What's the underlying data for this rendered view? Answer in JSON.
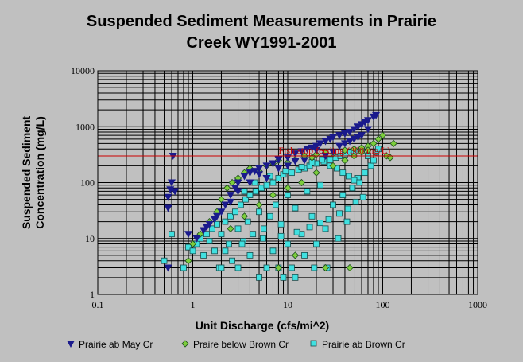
{
  "chart_data": {
    "type": "scatter",
    "title_line1": "Suspended Sediment Measurements in Prairie",
    "title_line2": "Creek WY1991-2001",
    "xlabel": "Unit Discharge (cfs/mi^2)",
    "ylabel_line1": "Suspended Sediment",
    "ylabel_line2": "Concentration (mg/L)",
    "xscale": "log",
    "yscale": "log",
    "xlim": [
      0.1,
      1000
    ],
    "ylim": [
      1,
      10000
    ],
    "x_ticks": [
      "0.1",
      "1",
      "10",
      "100",
      "1000"
    ],
    "y_ticks": [
      "1",
      "10",
      "100",
      "1000",
      "10000"
    ],
    "grid": true,
    "legend_position": "bottom",
    "reference_line": {
      "y": 300,
      "label": "Fish stop feeding (300 mg/L)",
      "color": "#cc0000"
    },
    "series": [
      {
        "name": "Prairie ab May Cr",
        "marker": "triangle-down",
        "color": "#1a1a8c",
        "points": [
          [
            0.55,
            35
          ],
          [
            0.55,
            55
          ],
          [
            0.58,
            75
          ],
          [
            0.6,
            100
          ],
          [
            0.62,
            300
          ],
          [
            0.65,
            70
          ],
          [
            0.55,
            3
          ],
          [
            0.9,
            12
          ],
          [
            1.1,
            10
          ],
          [
            1.3,
            14
          ],
          [
            1.5,
            18
          ],
          [
            1.7,
            22
          ],
          [
            2.0,
            30
          ],
          [
            2.2,
            40
          ],
          [
            2.5,
            60
          ],
          [
            2.8,
            80
          ],
          [
            3.0,
            100
          ],
          [
            3.5,
            130
          ],
          [
            4.0,
            150
          ],
          [
            4.5,
            160
          ],
          [
            5.0,
            180
          ],
          [
            6.0,
            200
          ],
          [
            7.0,
            220
          ],
          [
            8.0,
            260
          ],
          [
            10,
            280
          ],
          [
            12,
            330
          ],
          [
            14,
            360
          ],
          [
            16,
            400
          ],
          [
            18,
            420
          ],
          [
            20,
            450
          ],
          [
            22,
            500
          ],
          [
            25,
            550
          ],
          [
            28,
            600
          ],
          [
            30,
            650
          ],
          [
            35,
            700
          ],
          [
            40,
            750
          ],
          [
            45,
            800
          ],
          [
            50,
            900
          ],
          [
            55,
            1000
          ],
          [
            60,
            1100
          ],
          [
            65,
            1200
          ],
          [
            70,
            1300
          ],
          [
            80,
            1500
          ],
          [
            85,
            1600
          ],
          [
            15,
            250
          ],
          [
            25,
            300
          ],
          [
            30,
            350
          ],
          [
            40,
            500
          ],
          [
            50,
            600
          ],
          [
            60,
            700
          ],
          [
            35,
            450
          ],
          [
            45,
            550
          ],
          [
            55,
            650
          ],
          [
            70,
            900
          ],
          [
            20,
            380
          ],
          [
            10,
            200
          ],
          [
            12,
            240
          ],
          [
            8,
            180
          ],
          [
            6,
            120
          ],
          [
            5,
            140
          ],
          [
            4,
            100
          ],
          [
            3,
            70
          ],
          [
            2.5,
            45
          ],
          [
            1.8,
            25
          ],
          [
            1.4,
            16
          ]
        ]
      },
      {
        "name": "Praire below Brown Cr",
        "marker": "diamond",
        "color": "#7ccd3c",
        "points": [
          [
            0.9,
            4
          ],
          [
            1.0,
            8
          ],
          [
            1.2,
            12
          ],
          [
            1.5,
            20
          ],
          [
            1.8,
            30
          ],
          [
            2.0,
            50
          ],
          [
            2.3,
            80
          ],
          [
            2.6,
            100
          ],
          [
            3.0,
            120
          ],
          [
            3.5,
            150
          ],
          [
            4.0,
            180
          ],
          [
            5.0,
            160
          ],
          [
            6.0,
            200
          ],
          [
            7.0,
            220
          ],
          [
            8.0,
            250
          ],
          [
            10,
            230
          ],
          [
            12,
            260
          ],
          [
            15,
            300
          ],
          [
            18,
            280
          ],
          [
            20,
            320
          ],
          [
            25,
            350
          ],
          [
            30,
            330
          ],
          [
            40,
            380
          ],
          [
            50,
            400
          ],
          [
            60,
            420
          ],
          [
            70,
            450
          ],
          [
            80,
            500
          ],
          [
            90,
            600
          ],
          [
            100,
            700
          ],
          [
            110,
            300
          ],
          [
            120,
            280
          ],
          [
            130,
            500
          ],
          [
            2.5,
            15
          ],
          [
            3.5,
            25
          ],
          [
            5,
            40
          ],
          [
            7,
            60
          ],
          [
            10,
            80
          ],
          [
            14,
            100
          ],
          [
            20,
            150
          ],
          [
            30,
            200
          ],
          [
            40,
            250
          ],
          [
            50,
            300
          ],
          [
            60,
            350
          ],
          [
            70,
            380
          ],
          [
            25,
            3
          ],
          [
            45,
            3
          ],
          [
            8,
            3
          ],
          [
            12,
            5
          ]
        ]
      },
      {
        "name": "Prairie ab Brown Cr",
        "marker": "square",
        "color": "#40e0e0",
        "points": [
          [
            0.5,
            4
          ],
          [
            0.6,
            12
          ],
          [
            0.8,
            3
          ],
          [
            0.9,
            7
          ],
          [
            1.0,
            6
          ],
          [
            1.1,
            8
          ],
          [
            1.2,
            10
          ],
          [
            1.3,
            5
          ],
          [
            1.4,
            12
          ],
          [
            1.5,
            9
          ],
          [
            1.6,
            15
          ],
          [
            1.7,
            6
          ],
          [
            1.8,
            18
          ],
          [
            1.9,
            3
          ],
          [
            2.0,
            12
          ],
          [
            2.0,
            3
          ],
          [
            2.2,
            20
          ],
          [
            2.4,
            8
          ],
          [
            2.5,
            25
          ],
          [
            2.6,
            4
          ],
          [
            2.8,
            30
          ],
          [
            3.0,
            15
          ],
          [
            3.0,
            3
          ],
          [
            3.2,
            40
          ],
          [
            3.4,
            9
          ],
          [
            3.6,
            50
          ],
          [
            3.8,
            20
          ],
          [
            4.0,
            60
          ],
          [
            4.0,
            5
          ],
          [
            4.3,
            12
          ],
          [
            4.6,
            70
          ],
          [
            5.0,
            30
          ],
          [
            5.0,
            2
          ],
          [
            5.3,
            80
          ],
          [
            5.6,
            15
          ],
          [
            6.0,
            90
          ],
          [
            6.0,
            3
          ],
          [
            6.5,
            25
          ],
          [
            7.0,
            100
          ],
          [
            7.0,
            6
          ],
          [
            7.5,
            40
          ],
          [
            8.0,
            120
          ],
          [
            8.0,
            3
          ],
          [
            8.5,
            18
          ],
          [
            9.0,
            140
          ],
          [
            9.0,
            2
          ],
          [
            10,
            60
          ],
          [
            10,
            8
          ],
          [
            11,
            150
          ],
          [
            11,
            3
          ],
          [
            12,
            35
          ],
          [
            12,
            2
          ],
          [
            13,
            170
          ],
          [
            14,
            12
          ],
          [
            15,
            180
          ],
          [
            15,
            5
          ],
          [
            16,
            70
          ],
          [
            17,
            200
          ],
          [
            18,
            25
          ],
          [
            19,
            3
          ],
          [
            20,
            220
          ],
          [
            20,
            8
          ],
          [
            22,
            90
          ],
          [
            24,
            240
          ],
          [
            25,
            15
          ],
          [
            26,
            3
          ],
          [
            28,
            260
          ],
          [
            30,
            40
          ],
          [
            32,
            280
          ],
          [
            34,
            10
          ],
          [
            36,
            300
          ],
          [
            38,
            60
          ],
          [
            40,
            320
          ],
          [
            42,
            20
          ],
          [
            45,
            340
          ],
          [
            48,
            80
          ],
          [
            50,
            360
          ],
          [
            55,
            120
          ],
          [
            60,
            380
          ],
          [
            65,
            150
          ],
          [
            70,
            300
          ],
          [
            75,
            200
          ],
          [
            80,
            250
          ],
          [
            85,
            350
          ],
          [
            90,
            400
          ],
          [
            3.5,
            70
          ],
          [
            4.5,
            100
          ],
          [
            6.5,
            130
          ],
          [
            9.5,
            160
          ],
          [
            14,
            190
          ],
          [
            18,
            230
          ],
          [
            23,
            260
          ],
          [
            28,
            200
          ],
          [
            33,
            180
          ],
          [
            38,
            150
          ],
          [
            44,
            130
          ],
          [
            50,
            110
          ],
          [
            57,
            100
          ],
          [
            2.2,
            6
          ],
          [
            3.3,
            8
          ],
          [
            5.5,
            10
          ],
          [
            8.5,
            11
          ],
          [
            12.5,
            13
          ],
          [
            17,
            16
          ],
          [
            22,
            19
          ],
          [
            27,
            22
          ],
          [
            35,
            28
          ],
          [
            43,
            34
          ],
          [
            52,
            45
          ],
          [
            62,
            55
          ]
        ]
      }
    ]
  }
}
